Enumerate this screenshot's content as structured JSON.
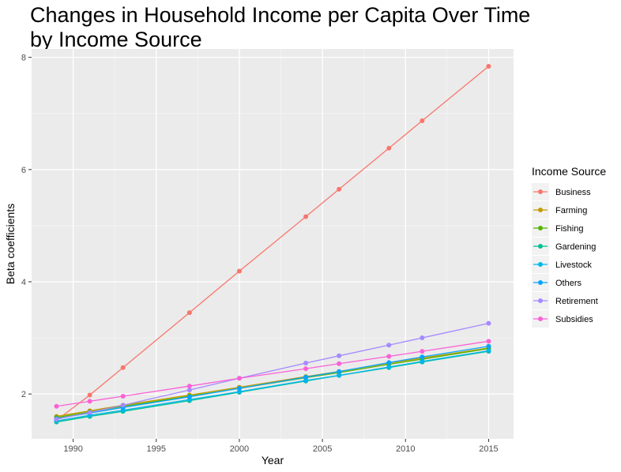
{
  "chart_data": {
    "type": "line",
    "title_lines": [
      "Changes in Household Income per Capita Over Time",
      "by Income Source"
    ],
    "xlabel": "Year",
    "ylabel": "Beta coefficients",
    "xlim": [
      1987.5,
      2016.5
    ],
    "ylim": [
      1.2,
      8.15
    ],
    "xticks": [
      1990,
      1995,
      2000,
      2005,
      2010,
      2015
    ],
    "yticks": [
      2,
      4,
      6,
      8
    ],
    "grid": true,
    "legend_title": "Income Source",
    "legend_position": "right",
    "x": [
      1989,
      1991,
      1993,
      1997,
      2000,
      2004,
      2006,
      2009,
      2011,
      2015
    ],
    "series": [
      {
        "name": "Business",
        "color": "#F8766D",
        "values": [
          1.53,
          1.98,
          2.47,
          3.45,
          4.19,
          5.16,
          5.65,
          6.38,
          6.87,
          7.84
        ]
      },
      {
        "name": "Farming",
        "color": "#C49A00",
        "values": [
          1.6,
          1.7,
          1.8,
          1.98,
          2.12,
          2.31,
          2.4,
          2.55,
          2.64,
          2.82
        ]
      },
      {
        "name": "Fishing",
        "color": "#53B400",
        "values": [
          1.58,
          1.68,
          1.78,
          1.96,
          2.1,
          2.29,
          2.38,
          2.53,
          2.62,
          2.81
        ]
      },
      {
        "name": "Gardening",
        "color": "#00C094",
        "values": [
          1.5,
          1.6,
          1.69,
          1.88,
          2.03,
          2.23,
          2.33,
          2.47,
          2.57,
          2.76
        ]
      },
      {
        "name": "Livestock",
        "color": "#00B6EB",
        "values": [
          1.52,
          1.62,
          1.71,
          1.9,
          2.04,
          2.24,
          2.33,
          2.48,
          2.58,
          2.77
        ]
      },
      {
        "name": "Others",
        "color": "#06A4FF",
        "values": [
          1.56,
          1.66,
          1.76,
          1.95,
          2.1,
          2.3,
          2.4,
          2.56,
          2.66,
          2.85
        ]
      },
      {
        "name": "Retirement",
        "color": "#A58AFF",
        "values": [
          1.55,
          1.67,
          1.8,
          2.07,
          2.28,
          2.55,
          2.68,
          2.87,
          3.0,
          3.26
        ]
      },
      {
        "name": "Subsidies",
        "color": "#FB61D7",
        "values": [
          1.78,
          1.87,
          1.96,
          2.14,
          2.28,
          2.45,
          2.54,
          2.67,
          2.76,
          2.94
        ]
      }
    ]
  }
}
